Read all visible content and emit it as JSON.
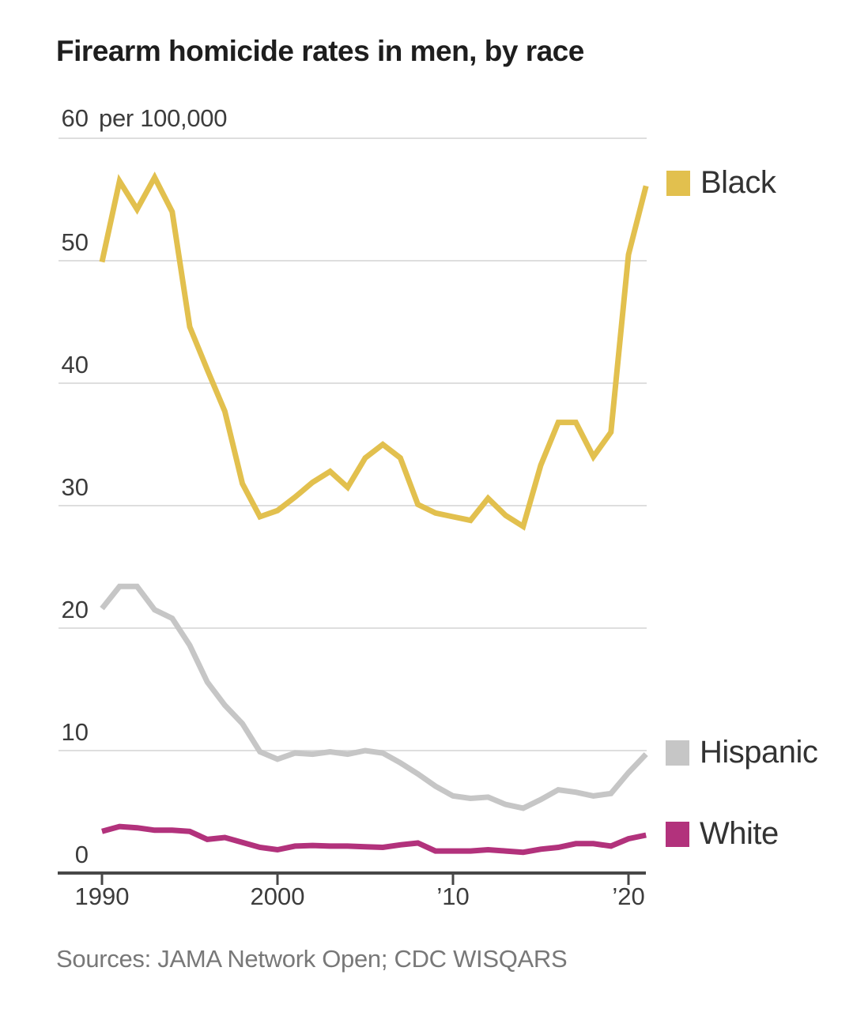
{
  "title": "Firearm homicide rates in men, by race",
  "y_axis": {
    "top_tick": "60",
    "unit": "per 100,000",
    "ticks": [
      "50",
      "40",
      "30",
      "20",
      "10",
      "0"
    ]
  },
  "x_axis": {
    "ticks": [
      "1990",
      "2000",
      "’10",
      "’20"
    ]
  },
  "legend": [
    {
      "label": "Black",
      "color": "#e2c04e"
    },
    {
      "label": "Hispanic",
      "color": "#c6c6c6"
    },
    {
      "label": "White",
      "color": "#b2327c"
    }
  ],
  "source": "Sources: JAMA Network Open; CDC WISQARS",
  "colors": {
    "gridline": "#dedede",
    "axis": "#474747",
    "text": "#3c3c3c"
  },
  "chart_data": {
    "type": "line",
    "title": "Firearm homicide rates in men, by race",
    "xlabel": "",
    "ylabel": "per 100,000",
    "xlim": [
      1990,
      2021
    ],
    "ylim": [
      0,
      60
    ],
    "grid": true,
    "legend_position": "right",
    "x": [
      1990,
      1991,
      1992,
      1993,
      1994,
      1995,
      1996,
      1997,
      1998,
      1999,
      2000,
      2001,
      2002,
      2003,
      2004,
      2005,
      2006,
      2007,
      2008,
      2009,
      2010,
      2011,
      2012,
      2013,
      2014,
      2015,
      2016,
      2017,
      2018,
      2019,
      2020,
      2021
    ],
    "series": [
      {
        "name": "Black",
        "color": "#e2c04e",
        "values": [
          49.9,
          56.5,
          54.2,
          56.8,
          54.0,
          44.6,
          41.1,
          37.7,
          31.8,
          29.1,
          29.6,
          30.7,
          31.9,
          32.8,
          31.5,
          33.9,
          35.0,
          33.9,
          30.1,
          29.4,
          29.1,
          28.8,
          30.6,
          29.2,
          28.3,
          33.3,
          36.8,
          36.8,
          34.0,
          36.0,
          50.5,
          56.1
        ]
      },
      {
        "name": "Hispanic",
        "color": "#c6c6c6",
        "values": [
          21.6,
          23.4,
          23.4,
          21.5,
          20.8,
          18.6,
          15.6,
          13.7,
          12.2,
          9.9,
          9.3,
          9.8,
          9.7,
          9.9,
          9.7,
          10.0,
          9.8,
          9.0,
          8.1,
          7.1,
          6.3,
          6.1,
          6.2,
          5.6,
          5.3,
          6.0,
          6.8,
          6.6,
          6.3,
          6.5,
          8.2,
          9.7
        ]
      },
      {
        "name": "White",
        "color": "#b2327c",
        "values": [
          3.4,
          3.8,
          3.7,
          3.5,
          3.5,
          3.4,
          2.75,
          2.9,
          2.5,
          2.1,
          1.9,
          2.2,
          2.25,
          2.2,
          2.2,
          2.15,
          2.1,
          2.3,
          2.45,
          1.8,
          1.8,
          1.8,
          1.9,
          1.8,
          1.7,
          1.95,
          2.1,
          2.4,
          2.4,
          2.2,
          2.8,
          3.1
        ]
      }
    ]
  }
}
